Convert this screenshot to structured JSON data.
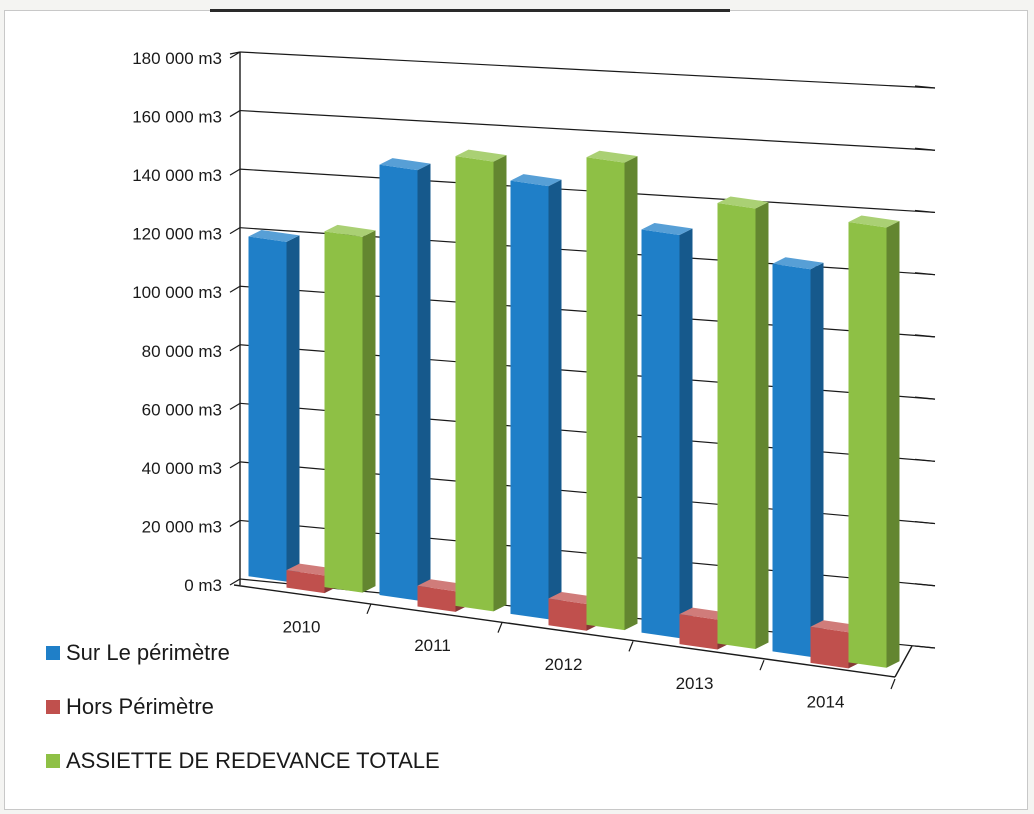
{
  "chart_data": {
    "type": "bar",
    "categories": [
      "2010",
      "2011",
      "2012",
      "2013",
      "2014"
    ],
    "series": [
      {
        "name": "Sur Le périmètre",
        "values": [
          116000,
          146000,
          146000,
          135000,
          129000
        ],
        "color": "#1f7fc8"
      },
      {
        "name": "Hors Périmètre",
        "values": [
          6000,
          7000,
          9000,
          10000,
          12000
        ],
        "color": "#c0504d"
      },
      {
        "name": "ASSIETTE DE REDEVANCE TOTALE",
        "values": [
          121000,
          152000,
          157000,
          147000,
          146000
        ],
        "color": "#8ec045"
      }
    ],
    "y_ticks": [
      "0 m3",
      "20 000 m3",
      "40 000 m3",
      "60 000 m3",
      "80 000 m3",
      "100 000 m3",
      "120 000 m3",
      "140 000 m3",
      "160 000 m3",
      "180 000 m3"
    ],
    "ylim": [
      0,
      180000
    ],
    "grid": true,
    "style": "3d-perspective",
    "legend_position": "bottom-left"
  }
}
